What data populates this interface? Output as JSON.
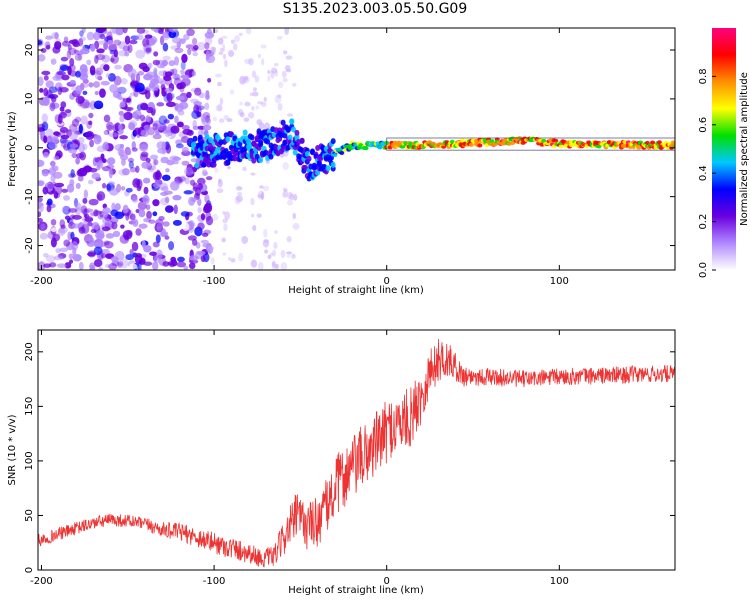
{
  "title": "S135.2023.003.05.50.G09",
  "chart_data": [
    {
      "type": "heatmap",
      "xlabel": "Height of straight line (km)",
      "ylabel": "Frequency (Hz)",
      "xlim": [
        -202,
        167
      ],
      "ylim": [
        -25,
        24.5
      ],
      "xticks": [
        -200,
        -100,
        0,
        100
      ],
      "yticks": [
        -20,
        -10,
        0,
        10,
        20
      ],
      "grid": false,
      "colorbar": {
        "label": "Normalized spectral amplitude",
        "ticks": [
          0.0,
          0.2,
          0.4,
          0.6,
          0.8
        ],
        "range": [
          0,
          1
        ],
        "colors": [
          "#ffffff",
          "#b088ff",
          "#6a00e0",
          "#0000ff",
          "#00c8ff",
          "#00e000",
          "#ffff00",
          "#ff9000",
          "#ff0000",
          "#ff0080"
        ]
      },
      "ridge": {
        "description_points": [
          {
            "x": -110,
            "y": -1.0
          },
          {
            "x": -90,
            "y": 0.0
          },
          {
            "x": -70,
            "y": 0.5
          },
          {
            "x": -55,
            "y": 3.0
          },
          {
            "x": -45,
            "y": -4.0
          },
          {
            "x": -35,
            "y": -2.0
          },
          {
            "x": -20,
            "y": 0.5
          },
          {
            "x": 0,
            "y": 0.5
          },
          {
            "x": 20,
            "y": 0.5
          },
          {
            "x": 80,
            "y": 1.5
          },
          {
            "x": 100,
            "y": 0.8
          },
          {
            "x": 167,
            "y": 0.5
          }
        ]
      }
    },
    {
      "type": "line",
      "xlabel": "Height of straight line (km)",
      "ylabel": "SNR (10 * v/v)",
      "xlim": [
        -202,
        167
      ],
      "ylim": [
        0,
        220
      ],
      "xticks": [
        -200,
        -100,
        0,
        100
      ],
      "yticks": [
        0,
        50,
        100,
        150,
        200
      ],
      "grid": false,
      "series": [
        {
          "color": "#ee3333",
          "x": [
            -202,
            -190,
            -180,
            -170,
            -160,
            -150,
            -140,
            -130,
            -120,
            -110,
            -100,
            -90,
            -80,
            -72,
            -65,
            -58,
            -52,
            -46,
            -40,
            -34,
            -28,
            -22,
            -16,
            -10,
            -4,
            2,
            8,
            14,
            20,
            26,
            32,
            38,
            44,
            60,
            80,
            100,
            120,
            140,
            167
          ],
          "y": [
            27,
            33,
            38,
            43,
            46,
            45,
            42,
            37,
            35,
            30,
            25,
            20,
            16,
            10,
            13,
            35,
            50,
            40,
            45,
            60,
            80,
            90,
            100,
            110,
            120,
            130,
            135,
            140,
            160,
            185,
            195,
            190,
            178,
            177,
            175,
            177,
            178,
            179,
            180
          ],
          "noise": [
            6,
            6,
            6,
            6,
            6,
            6,
            6,
            7,
            8,
            9,
            10,
            10,
            10,
            8,
            10,
            18,
            22,
            22,
            24,
            26,
            28,
            30,
            30,
            30,
            30,
            28,
            28,
            28,
            26,
            22,
            20,
            14,
            10,
            8,
            8,
            8,
            8,
            8,
            8
          ]
        }
      ]
    }
  ]
}
